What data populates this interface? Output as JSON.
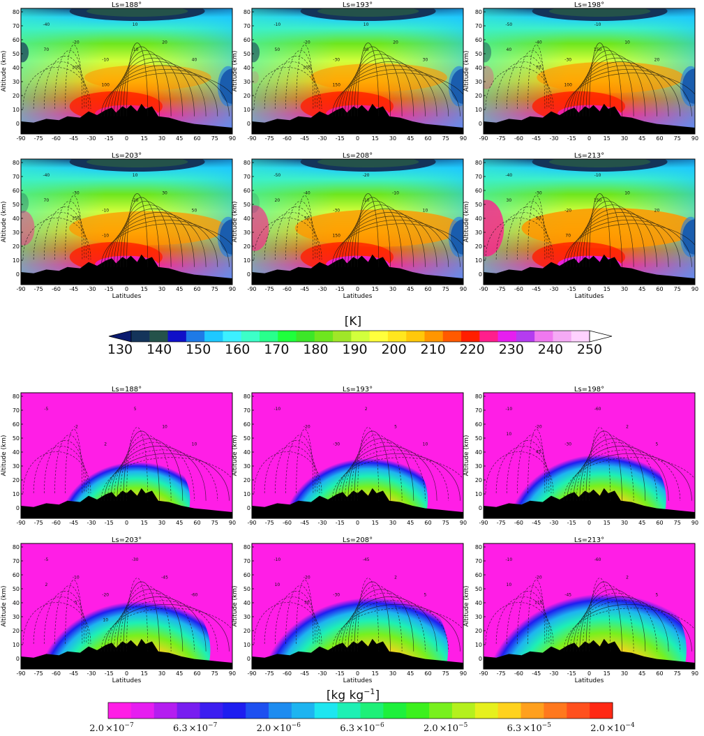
{
  "chart_data": [
    {
      "type": "heatmap",
      "group": "temperature",
      "panel_titles": [
        "Ls=188°",
        "Ls=193°",
        "Ls=198°",
        "Ls=203°",
        "Ls=208°",
        "Ls=213°"
      ],
      "ylabel": "Altitude (km)",
      "xlabel": "Latitudes",
      "x_ticks": [
        "-90",
        "-75",
        "-60",
        "-45",
        "-30",
        "-15",
        "0",
        "15",
        "30",
        "45",
        "60",
        "75",
        "90"
      ],
      "y_ticks": [
        "80",
        "70",
        "60",
        "50",
        "40",
        "30",
        "20",
        "10",
        "0"
      ],
      "xlim": [
        -90,
        90
      ],
      "ylim": [
        -8,
        80
      ],
      "colorbar": {
        "unit": "[K]",
        "ticks": [
          "130",
          "140",
          "150",
          "160",
          "170",
          "180",
          "190",
          "200",
          "210",
          "220",
          "230",
          "240",
          "250"
        ],
        "extend": "both",
        "colors": [
          "#0a1a6e",
          "#14345a",
          "#24524a",
          "#1010c8",
          "#1e7ae6",
          "#1ec8ff",
          "#3cf0ff",
          "#3cffc8",
          "#28ff8c",
          "#1eff3c",
          "#3ce628",
          "#6ee61e",
          "#a0e628",
          "#d2ff3c",
          "#ffff3c",
          "#ffe61e",
          "#ffc80a",
          "#ff9600",
          "#ff5a00",
          "#ff1e00",
          "#ff1e8c",
          "#e61ef0",
          "#b43cf0",
          "#f078f0",
          "#f5aaf5",
          "#ffd2ff",
          "#ffffff"
        ]
      },
      "contour_labels": [
        [
          "-40",
          "-20",
          "-10",
          "10",
          "20",
          "40",
          "70",
          "100",
          "100",
          "-10"
        ],
        [
          "-10",
          "-20",
          "-30",
          "10",
          "20",
          "30",
          "50",
          "100",
          "150",
          "30"
        ],
        [
          "-50",
          "-40",
          "-30",
          "-10",
          "10",
          "20",
          "40",
          "70",
          "100",
          "150"
        ],
        [
          "-40",
          "-30",
          "-10",
          "10",
          "30",
          "50",
          "70",
          "150",
          "-10",
          "-20"
        ],
        [
          "-50",
          "-40",
          "-30",
          "-20",
          "-10",
          "10",
          "20",
          "50",
          "150",
          "-10"
        ],
        [
          "-40",
          "-30",
          "-20",
          "-10",
          "10",
          "20",
          "30",
          "50",
          "70",
          "150"
        ]
      ]
    },
    {
      "type": "heatmap",
      "group": "dust mixing ratio",
      "panel_titles": [
        "Ls=188°",
        "Ls=193°",
        "Ls=198°",
        "Ls=203°",
        "Ls=208°",
        "Ls=213°"
      ],
      "ylabel": "Altitude (km)",
      "xlabel": "Latitudes",
      "x_ticks": [
        "-90",
        "-75",
        "-60",
        "-45",
        "-30",
        "-15",
        "0",
        "15",
        "30",
        "45",
        "60",
        "75",
        "90"
      ],
      "y_ticks": [
        "80",
        "70",
        "60",
        "50",
        "40",
        "30",
        "20",
        "10",
        "0"
      ],
      "xlim": [
        -90,
        90
      ],
      "ylim": [
        -8,
        80
      ],
      "colorbar": {
        "unit": "[kg kg",
        "unit_exponent": "−1",
        "unit_close": "]",
        "ticks": [
          {
            "mantissa": "2.0",
            "exponent": "−7"
          },
          {
            "mantissa": "6.3",
            "exponent": "−7"
          },
          {
            "mantissa": "2.0",
            "exponent": "−6"
          },
          {
            "mantissa": "6.3",
            "exponent": "−6"
          },
          {
            "mantissa": "2.0",
            "exponent": "−5"
          },
          {
            "mantissa": "6.3",
            "exponent": "−5"
          },
          {
            "mantissa": "2.0",
            "exponent": "−4"
          }
        ],
        "times": "×10",
        "colors": [
          "#ff1ee6",
          "#e61ef0",
          "#b41ef0",
          "#781ef0",
          "#3c1ef0",
          "#1e1ef0",
          "#1e50f0",
          "#1e8cf0",
          "#1eb4f0",
          "#1ee6f0",
          "#1ef0b4",
          "#1ef078",
          "#1ef03c",
          "#3cf01e",
          "#78f01e",
          "#b4f01e",
          "#e6f01e",
          "#ffd21e",
          "#ffa01e",
          "#ff781e",
          "#ff501e",
          "#ff2814"
        ]
      },
      "contour_labels": [
        [
          "-5",
          "-2",
          "2",
          "5",
          "10",
          "10"
        ],
        [
          "-10",
          "-20",
          "-30",
          "2",
          "5",
          "10"
        ],
        [
          "-10",
          "-20",
          "-30",
          "-60",
          "2",
          "5",
          "10",
          "45"
        ],
        [
          "-5",
          "-10",
          "-20",
          "-30",
          "-45",
          "-60",
          "2",
          "5",
          "10"
        ],
        [
          "-10",
          "-20",
          "-30",
          "-45",
          "2",
          "5",
          "10",
          "30"
        ],
        [
          "-10",
          "-20",
          "-45",
          "-60",
          "2",
          "5",
          "10",
          "110"
        ]
      ]
    }
  ]
}
